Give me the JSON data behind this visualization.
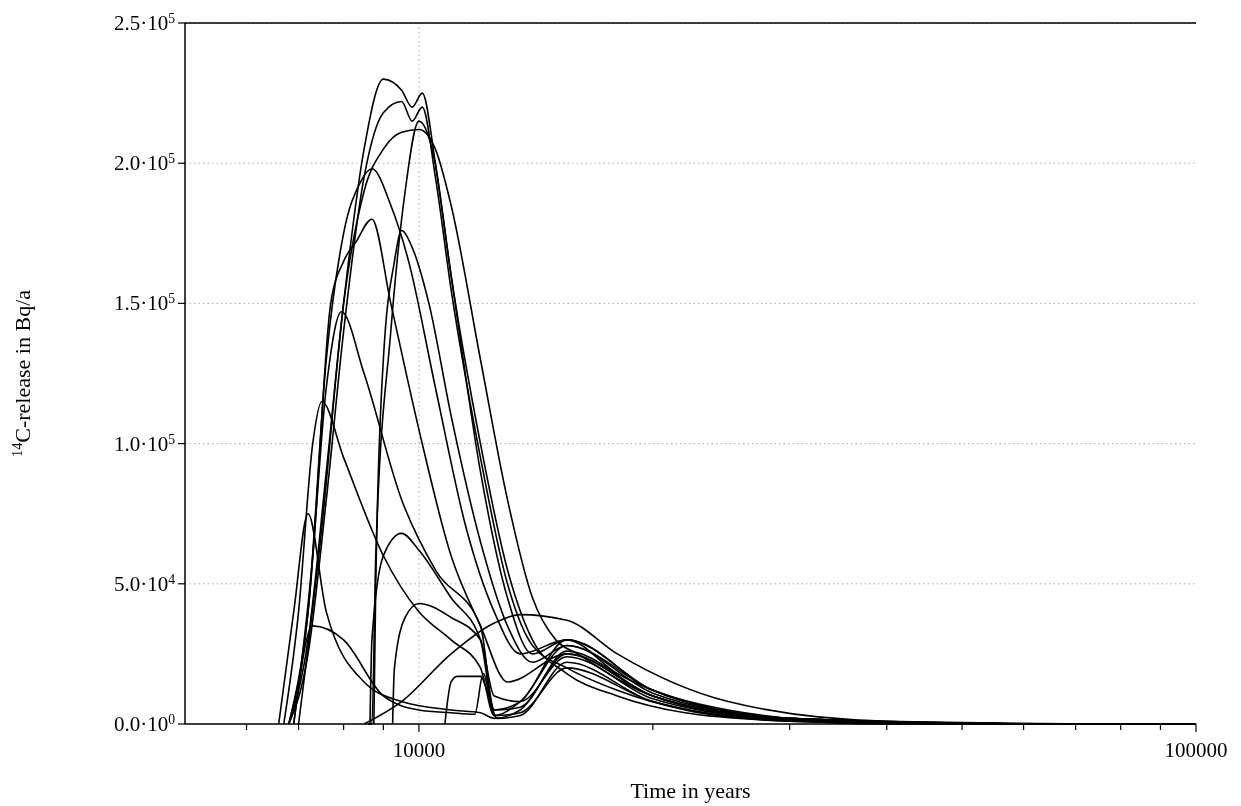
{
  "chart_data": {
    "type": "line",
    "xlabel": "Time in years",
    "ylabel": "$^{14}$C-release in Bq/a",
    "log": "x",
    "grid": true,
    "marker": "none",
    "line_style": "solid",
    "xlim": [
      5000,
      100000
    ],
    "xticks": [
      {
        "value": 6000,
        "label": null
      },
      {
        "value": 7000,
        "label": null
      },
      {
        "value": 8000,
        "label": null
      },
      {
        "value": 9000,
        "label": null
      },
      10000,
      {
        "value": 20000,
        "label": null
      },
      {
        "value": 30000,
        "label": null
      },
      {
        "value": 40000,
        "label": null
      },
      {
        "value": 50000,
        "label": null
      },
      {
        "value": 60000,
        "label": null
      },
      {
        "value": 70000,
        "label": null
      },
      {
        "value": 80000,
        "label": null
      },
      {
        "value": 90000,
        "label": null
      },
      100000
    ],
    "ylim": [
      0,
      250000
    ],
    "yticks": [
      {
        "value": 0,
        "label": "0.0·10$^{0}$"
      },
      {
        "value": 50000,
        "label": "5.0·10$^{4}$"
      },
      {
        "value": 100000,
        "label": "1.0·10$^{5}$"
      },
      {
        "value": 150000,
        "label": "1.5·10$^{5}$"
      },
      {
        "value": 200000,
        "label": "2.0·10$^{5}$"
      },
      {
        "value": 250000,
        "label": "2.5·10$^{5}$"
      }
    ],
    "series": [
      {
        "color": "#000000",
        "x": [
          6800,
          7200,
          7600,
          8000,
          8500,
          9000,
          9500,
          9800,
          10100,
          10500,
          11000,
          12000,
          13000,
          14000,
          15500,
          18000,
          22000,
          30000,
          45000,
          70000,
          100000
        ],
        "values": [
          0,
          30000,
          90000,
          150000,
          205000,
          230000,
          226000,
          220000,
          225000,
          200000,
          160000,
          100000,
          55000,
          30000,
          18000,
          10000,
          4000,
          1000,
          0,
          0,
          0
        ]
      },
      {
        "color": "#000000",
        "x": [
          6800,
          7200,
          7600,
          8000,
          8500,
          9000,
          9500,
          9800,
          10100,
          10500,
          11000,
          12000,
          13000,
          14000,
          15500,
          18000,
          22000,
          30000,
          45000,
          70000,
          100000
        ],
        "values": [
          0,
          25000,
          80000,
          140000,
          195000,
          218000,
          222000,
          215000,
          220000,
          195000,
          155000,
          95000,
          50000,
          28000,
          20000,
          12000,
          5000,
          1000,
          0,
          0,
          0
        ]
      },
      {
        "color": "#000000",
        "x": [
          7000,
          7500,
          8000,
          8500,
          9000,
          9500,
          10000,
          10500,
          11000,
          12000,
          13000,
          14000,
          15000,
          16000,
          20000,
          30000,
          50000,
          100000
        ],
        "values": [
          0,
          70000,
          150000,
          190000,
          205000,
          211000,
          212000,
          205000,
          185000,
          130000,
          80000,
          45000,
          30000,
          25000,
          10000,
          1500,
          0,
          0
        ]
      },
      {
        "color": "#000000",
        "x": [
          8600,
          8700,
          8800,
          9200,
          9600,
          10000,
          10400,
          11000,
          12000,
          13000,
          14000,
          15500,
          18000,
          25000,
          40000,
          100000
        ],
        "values": [
          0,
          0,
          60000,
          140000,
          190000,
          215000,
          205000,
          160000,
          90000,
          45000,
          25000,
          30000,
          18000,
          5000,
          0,
          0
        ]
      },
      {
        "color": "#000000",
        "x": [
          6800,
          7200,
          7600,
          8000,
          8400,
          8700,
          9200,
          9700,
          10500,
          11500,
          12500,
          13500,
          15500,
          20000,
          30000,
          60000,
          100000
        ],
        "values": [
          0,
          40000,
          130000,
          175000,
          193000,
          198000,
          185000,
          165000,
          120000,
          70000,
          40000,
          25000,
          30000,
          12000,
          2000,
          0,
          0
        ]
      },
      {
        "color": "#000000",
        "x": [
          6900,
          7300,
          7700,
          8000,
          8300,
          8700,
          9200,
          10000,
          11000,
          12000,
          13000,
          15500,
          20000,
          30000,
          60000,
          100000
        ],
        "values": [
          0,
          60000,
          150000,
          165000,
          172000,
          180000,
          150000,
          105000,
          60000,
          35000,
          15000,
          25000,
          10000,
          2000,
          0,
          0
        ]
      },
      {
        "color": "#000000",
        "x": [
          6800,
          7200,
          7600,
          7950,
          8500,
          9500,
          10500,
          12000,
          12500,
          13500,
          15500,
          20000,
          30000,
          60000
        ],
        "values": [
          0,
          40000,
          120000,
          147000,
          125000,
          80000,
          55000,
          35000,
          5000,
          8000,
          30000,
          12000,
          2000,
          0
        ]
      },
      {
        "color": "#000000",
        "x": [
          6700,
          7000,
          7300,
          7500,
          8000,
          9000,
          10000,
          11000,
          12000,
          12500,
          13500,
          15500,
          20000,
          30000,
          60000
        ],
        "values": [
          0,
          40000,
          100000,
          115000,
          95000,
          60000,
          40000,
          30000,
          20000,
          3000,
          8000,
          28000,
          12000,
          2000,
          0
        ]
      },
      {
        "color": "#000000",
        "x": [
          6600,
          6900,
          7200,
          7600,
          8500,
          9500,
          11000,
          12000,
          12500,
          13500,
          15500,
          20000,
          30000,
          60000
        ],
        "values": [
          0,
          40000,
          75000,
          40000,
          15000,
          8000,
          5000,
          4000,
          2000,
          5000,
          25000,
          10000,
          1500,
          0
        ]
      },
      {
        "color": "#000000",
        "x": [
          8750,
          8800,
          9000,
          9300,
          9500,
          9800,
          10300,
          11000,
          12000,
          13000,
          14000,
          15500,
          20000,
          30000,
          60000
        ],
        "values": [
          0,
          50000,
          130000,
          165000,
          176000,
          170000,
          150000,
          110000,
          65000,
          35000,
          22000,
          28000,
          11000,
          2000,
          0
        ]
      },
      {
        "color": "#000000",
        "x": [
          8650,
          8700,
          9000,
          9500,
          10000,
          11000,
          12000,
          12500,
          13500,
          15500,
          20000,
          30000,
          60000
        ],
        "values": [
          0,
          30000,
          60000,
          68000,
          62000,
          45000,
          30000,
          5000,
          6000,
          26000,
          10000,
          1500,
          0
        ]
      },
      {
        "color": "#000000",
        "x": [
          9250,
          9300,
          9600,
          10000,
          11000,
          12000,
          12500,
          13500,
          15500,
          20000,
          30000,
          60000
        ],
        "values": [
          0,
          20000,
          38000,
          43000,
          38000,
          30000,
          10000,
          8000,
          24000,
          9000,
          1500,
          0
        ]
      },
      {
        "color": "#000000",
        "x": [
          8500,
          9500,
          11000,
          12500,
          13500,
          15500,
          18000,
          25000,
          40000,
          80000
        ],
        "values": [
          0,
          8000,
          25000,
          36000,
          39000,
          37000,
          25000,
          8000,
          1000,
          0
        ]
      },
      {
        "color": "#000000",
        "x": [
          6900,
          7300,
          8000,
          9000,
          10000,
          11000,
          11800,
          12100,
          12500,
          13500,
          15500,
          20000,
          30000,
          60000
        ],
        "values": [
          0,
          35000,
          30000,
          10000,
          5000,
          4000,
          3500,
          18000,
          3000,
          4000,
          20000,
          8000,
          1200,
          0
        ]
      },
      {
        "color": "#000000",
        "x": [
          10800,
          11000,
          11200,
          12000,
          12300,
          12600,
          13500,
          15500,
          20000,
          30000,
          60000
        ],
        "values": [
          0,
          15000,
          17000,
          17000,
          10000,
          2000,
          3000,
          22000,
          8000,
          1200,
          0
        ]
      }
    ]
  }
}
